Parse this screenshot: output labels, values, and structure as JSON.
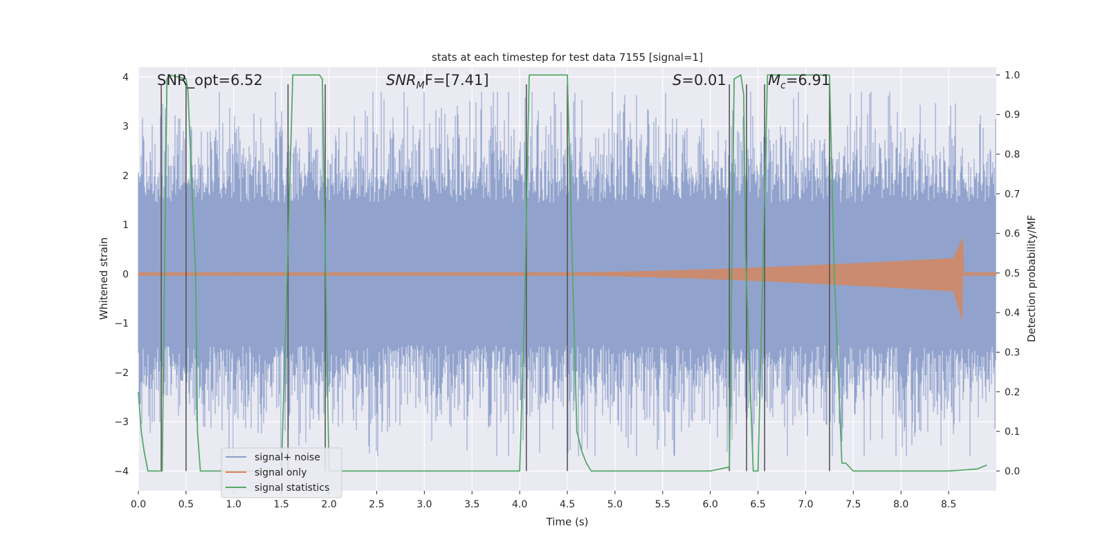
{
  "chart_data": {
    "type": "line",
    "title": "stats at each timestep for test data 7155 [signal=1]",
    "xlabel": "Time (s)",
    "ylabel": "Whitened strain",
    "ylabel_right": "Detection probability/MF",
    "xlim": [
      0.0,
      9.0
    ],
    "ylim": [
      -4.4,
      4.2
    ],
    "ylim_right": [
      -0.05,
      1.02
    ],
    "xticks": [
      "0.0",
      "0.5",
      "1.0",
      "1.5",
      "2.0",
      "2.5",
      "3.0",
      "3.5",
      "4.0",
      "4.5",
      "5.0",
      "5.5",
      "6.0",
      "6.5",
      "7.0",
      "7.5",
      "8.0",
      "8.5"
    ],
    "xtick_values": [
      0.0,
      0.5,
      1.0,
      1.5,
      2.0,
      2.5,
      3.0,
      3.5,
      4.0,
      4.5,
      5.0,
      5.5,
      6.0,
      6.5,
      7.0,
      7.5,
      8.0,
      8.5
    ],
    "yticks": [
      "−4",
      "−3",
      "−2",
      "−1",
      "0",
      "1",
      "2",
      "3",
      "4"
    ],
    "ytick_values": [
      -4,
      -3,
      -2,
      -1,
      0,
      1,
      2,
      3,
      4
    ],
    "yticks_right": [
      "0.0",
      "0.1",
      "0.2",
      "0.3",
      "0.4",
      "0.5",
      "0.6",
      "0.7",
      "0.8",
      "0.9",
      "1.0"
    ],
    "ytick_right_values": [
      0.0,
      0.1,
      0.2,
      0.3,
      0.4,
      0.5,
      0.6,
      0.7,
      0.8,
      0.9,
      1.0
    ],
    "annotations": {
      "snr_opt": "SNR_opt=6.52",
      "snr_mf_sym": "SNR",
      "snr_mf_sub": "M",
      "snr_mf_rest": "F=[7.41]",
      "s_sym": "S",
      "s_rest": "=0.01",
      "mc_sym": "M",
      "mc_sub": "c",
      "mc_rest": "=6.91"
    },
    "legend": {
      "position": "lower-left",
      "entries": [
        {
          "label": "signal+ noise",
          "color": "#8c9fca"
        },
        {
          "label": "signal only",
          "color": "#dd8452"
        },
        {
          "label": "signal statistics",
          "color": "#55a868"
        }
      ]
    },
    "series": [
      {
        "name": "signal+ noise",
        "color": "#8c9fca",
        "description_stats": {
          "envelope_typical": [
            -1.7,
            1.7
          ],
          "peak_max": 3.7,
          "peak_min": -3.7
        }
      },
      {
        "name": "signal only",
        "color": "#dd8452",
        "chirp": {
          "start_s": 4.5,
          "merger_s": 8.65,
          "peak_amplitude": 0.7,
          "min_at_merger": -1.0
        }
      },
      {
        "name": "signal statistics",
        "color": "#55a868",
        "axis": "right",
        "x": [
          0.0,
          0.03,
          0.06,
          0.1,
          0.25,
          0.3,
          0.33,
          0.5,
          0.52,
          0.6,
          0.62,
          0.65,
          0.9,
          1.5,
          1.55,
          1.62,
          1.9,
          1.93,
          2.0,
          2.1,
          2.5,
          3.0,
          3.5,
          4.0,
          4.05,
          4.1,
          4.2,
          4.5,
          4.6,
          4.65,
          4.7,
          4.75,
          4.8,
          5.0,
          5.5,
          6.0,
          6.2,
          6.25,
          6.32,
          6.35,
          6.37,
          6.45,
          6.5,
          6.55,
          6.6,
          7.25,
          7.3,
          7.38,
          7.42,
          7.5,
          8.0,
          8.5,
          8.8,
          8.9
        ],
        "values": [
          0.2,
          0.1,
          0.05,
          0.0,
          0.0,
          0.99,
          1.0,
          0.99,
          0.96,
          0.5,
          0.1,
          0.0,
          0.0,
          0.0,
          0.4,
          1.0,
          1.0,
          0.99,
          0.0,
          0.0,
          0.0,
          0.0,
          0.0,
          0.0,
          0.4,
          1.0,
          1.0,
          1.0,
          0.1,
          0.05,
          0.02,
          0.0,
          0.0,
          0.0,
          0.0,
          0.0,
          0.01,
          0.99,
          1.0,
          0.95,
          0.55,
          0.0,
          0.0,
          0.5,
          1.0,
          1.0,
          0.5,
          0.02,
          0.02,
          0.0,
          0.0,
          0.0,
          0.005,
          0.015
        ]
      }
    ],
    "vertical_lines": {
      "color": "#555555",
      "x": [
        0.24,
        0.5,
        1.57,
        1.96,
        4.07,
        4.5,
        6.2,
        6.38,
        6.57,
        7.25
      ]
    }
  }
}
